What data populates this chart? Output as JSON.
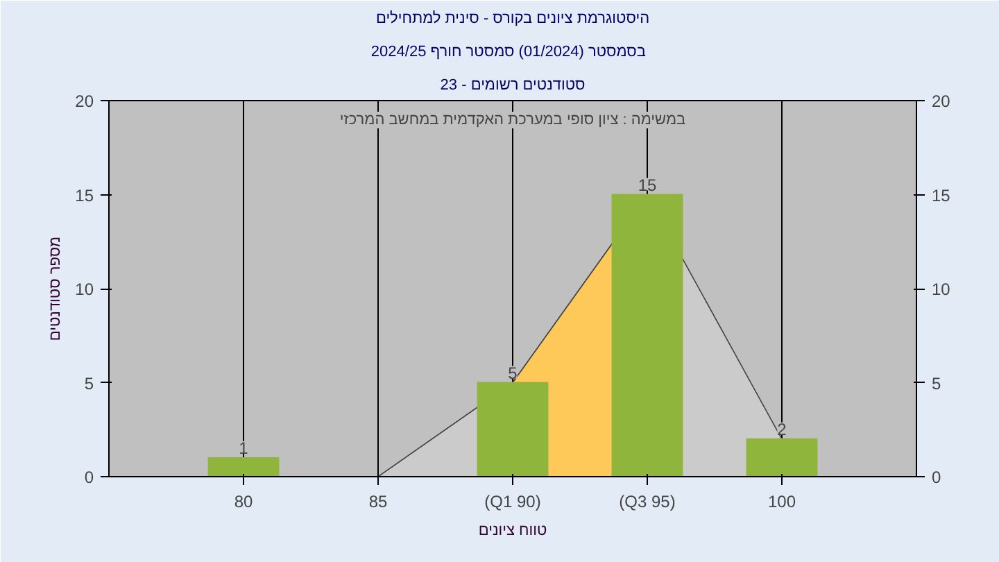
{
  "chart_data": {
    "type": "bar",
    "title": "היסטוגרמת ציונים בקורס - סינית למתחילים",
    "subtitle": "בסמסטר  (01/2024)  סמסטר חורף 2024/25",
    "xlabel": "טווח ציונים",
    "ylabel": "מספר סטודנטים",
    "annotations": [
      "סטודנטים רשומים - 23",
      "במשימה : ציון סופי במערכת האקדמית במחשב המרכזי"
    ],
    "categories": [
      "80",
      "85",
      "(Q1 90)",
      "(Q3 95)",
      "100"
    ],
    "series": [
      {
        "type": "area",
        "color": "#cbcbcb",
        "values": [
          null,
          0,
          5,
          15,
          2
        ]
      },
      {
        "type": "area",
        "color": "#ffc95a",
        "values": [
          null,
          null,
          5,
          15,
          null
        ]
      },
      {
        "color": "#8fb53c",
        "values": [
          1,
          0,
          5,
          15,
          2
        ],
        "value_labels": [
          "1",
          null,
          "5",
          "15",
          "2"
        ]
      }
    ],
    "ylim": [
      0,
      20
    ],
    "yticks": [
      0,
      5,
      10,
      15,
      20
    ],
    "y2lim": [
      0,
      20
    ],
    "y2ticks": [
      0,
      5,
      10,
      15,
      20
    ],
    "grid": "x",
    "legend": false
  }
}
